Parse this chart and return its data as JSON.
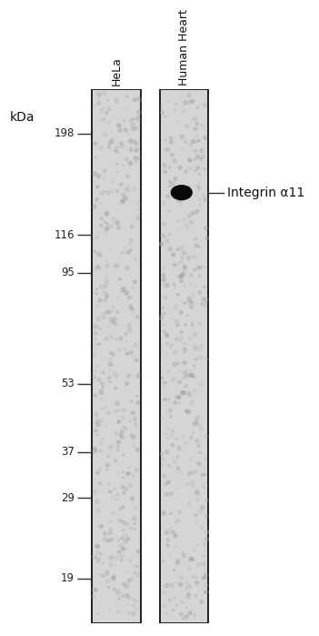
{
  "lanes": [
    "HeLa",
    "Human Heart"
  ],
  "kda_markers": [
    198,
    116,
    95,
    53,
    37,
    29,
    19
  ],
  "band_lane": 1,
  "band_kda": 145,
  "band_label": "Integrin α11",
  "lane_color": "#d5d5d5",
  "lane_border_color": "#111111",
  "background_color": "#ffffff",
  "marker_line_color": "#333333",
  "band_color": "#0a0a0a",
  "kda_label": "kDa",
  "ymin": 15,
  "ymax": 250,
  "title": ""
}
